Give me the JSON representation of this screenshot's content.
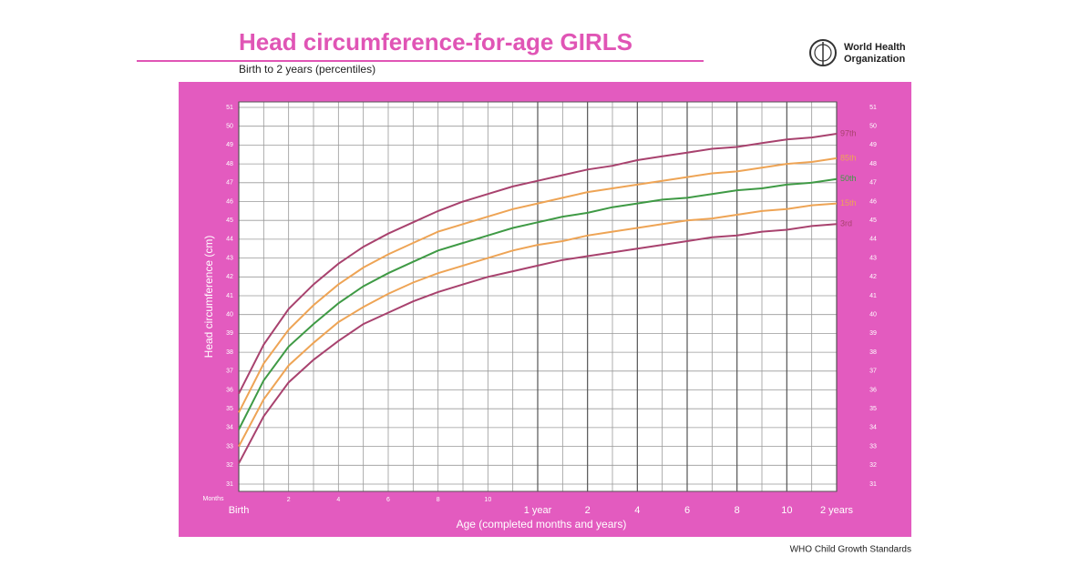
{
  "chart_data": {
    "type": "line",
    "title": "Head circumference-for-age  GIRLS",
    "subtitle": "Birth to 2 years (percentiles)",
    "organization": [
      "World Health",
      "Organization"
    ],
    "footer": "WHO Child Growth Standards",
    "ylabel": "Head circumference (cm)",
    "xlabel": "Age (completed months and years)",
    "xunit_label": "Months",
    "x": [
      0,
      1,
      2,
      3,
      4,
      5,
      6,
      7,
      8,
      9,
      10,
      11,
      12,
      13,
      14,
      15,
      16,
      17,
      18,
      19,
      20,
      21,
      22,
      23,
      24
    ],
    "xlim": [
      0,
      24
    ],
    "xticks": [
      {
        "value": 0,
        "label": "Birth"
      },
      2,
      4,
      6,
      8,
      10,
      {
        "value": 12,
        "label": "1 year"
      },
      {
        "value": 14,
        "label": "2"
      },
      {
        "value": 16,
        "label": "4"
      },
      {
        "value": 18,
        "label": "6"
      },
      {
        "value": 20,
        "label": "8"
      },
      {
        "value": 22,
        "label": "10"
      },
      {
        "value": 24,
        "label": "2 years"
      }
    ],
    "minor_xticks": [
      1,
      3,
      5,
      7,
      9,
      11,
      13,
      15,
      17,
      19,
      21,
      23
    ],
    "ylim": [
      31,
      51
    ],
    "yticks": [
      31,
      32,
      33,
      34,
      35,
      36,
      37,
      38,
      39,
      40,
      41,
      42,
      43,
      44,
      45,
      46,
      47,
      48,
      49,
      50,
      51
    ],
    "grid": true,
    "series": [
      {
        "name": "97th",
        "color": "#a8426e",
        "values": [
          35.8,
          38.4,
          40.3,
          41.6,
          42.7,
          43.6,
          44.3,
          44.9,
          45.5,
          46.0,
          46.4,
          46.8,
          47.1,
          47.4,
          47.7,
          47.9,
          48.2,
          48.4,
          48.6,
          48.8,
          48.9,
          49.1,
          49.3,
          49.4,
          49.6
        ]
      },
      {
        "name": "85th",
        "color": "#eea455",
        "values": [
          34.8,
          37.4,
          39.2,
          40.5,
          41.6,
          42.5,
          43.2,
          43.8,
          44.4,
          44.8,
          45.2,
          45.6,
          45.9,
          46.2,
          46.5,
          46.7,
          46.9,
          47.1,
          47.3,
          47.5,
          47.6,
          47.8,
          48.0,
          48.1,
          48.3
        ]
      },
      {
        "name": "50th",
        "color": "#3f9a45",
        "values": [
          33.9,
          36.5,
          38.3,
          39.5,
          40.6,
          41.5,
          42.2,
          42.8,
          43.4,
          43.8,
          44.2,
          44.6,
          44.9,
          45.2,
          45.4,
          45.7,
          45.9,
          46.1,
          46.2,
          46.4,
          46.6,
          46.7,
          46.9,
          47.0,
          47.2
        ]
      },
      {
        "name": "15th",
        "color": "#eea455",
        "values": [
          33.0,
          35.5,
          37.3,
          38.5,
          39.6,
          40.4,
          41.1,
          41.7,
          42.2,
          42.6,
          43.0,
          43.4,
          43.7,
          43.9,
          44.2,
          44.4,
          44.6,
          44.8,
          45.0,
          45.1,
          45.3,
          45.5,
          45.6,
          45.8,
          45.9
        ]
      },
      {
        "name": "3rd",
        "color": "#a8426e",
        "values": [
          32.1,
          34.6,
          36.4,
          37.6,
          38.6,
          39.5,
          40.1,
          40.7,
          41.2,
          41.6,
          42.0,
          42.3,
          42.6,
          42.9,
          43.1,
          43.3,
          43.5,
          43.7,
          43.9,
          44.1,
          44.2,
          44.4,
          44.5,
          44.7,
          44.8
        ]
      }
    ]
  }
}
